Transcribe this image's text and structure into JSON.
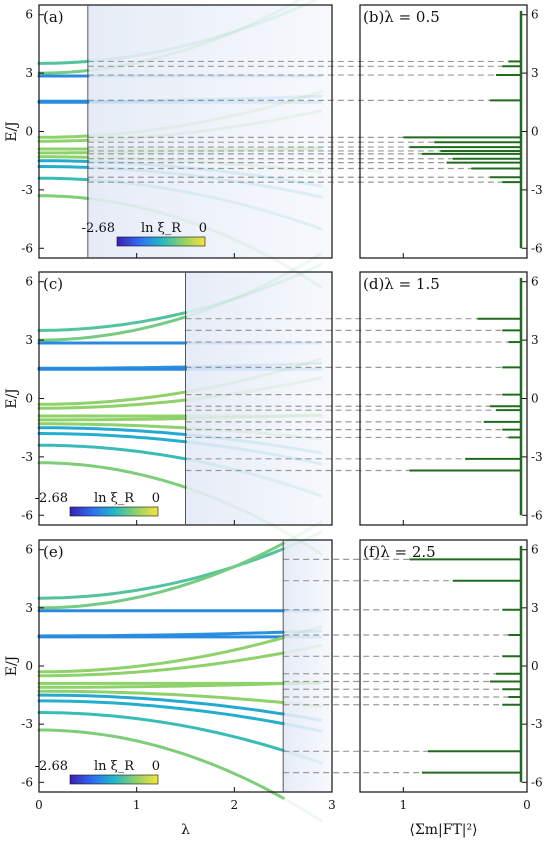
{
  "chart_data": {
    "type": "line",
    "panels": [
      {
        "label": "(a)",
        "kind": "spectrum",
        "lambda": 0.5
      },
      {
        "label": "(b)",
        "kind": "fourier",
        "lambda_text": "λ = 0.5",
        "lambda": 0.5
      },
      {
        "label": "(c)",
        "kind": "spectrum",
        "lambda": 1.5
      },
      {
        "label": "(d)",
        "kind": "fourier",
        "lambda_text": "λ = 1.5",
        "lambda": 1.5
      },
      {
        "label": "(e)",
        "kind": "spectrum",
        "lambda": 2.5
      },
      {
        "label": "(f)",
        "kind": "fourier",
        "lambda_text": "λ = 2.5",
        "lambda": 2.5
      }
    ],
    "ylabel": "E/J",
    "xlabel": "λ",
    "xlabel_right": "⟨Σm|FT|²⟩",
    "xlim": [
      0,
      3
    ],
    "ylim": [
      -6.5,
      6.5
    ],
    "xticks": [
      0,
      1,
      2,
      3
    ],
    "yticks": [
      -6,
      -3,
      0,
      3,
      6
    ],
    "right_xticks": [
      1,
      0
    ],
    "right_xlim": [
      1.35,
      0
    ],
    "colorbar": {
      "min_label": "-2.68",
      "max_label": "0",
      "label": "ln ξ_R",
      "min": -2.68,
      "max": 0
    },
    "levels": [
      {
        "E0": 3.5,
        "slope": 0.65,
        "a": 0.0
      },
      {
        "E0": 3.0,
        "slope": 0.85,
        "a": 0.0
      },
      {
        "E0": 2.85,
        "slope": 0.0,
        "a": 0.0
      },
      {
        "E0": 1.55,
        "slope": 0.05,
        "a": 0.0
      },
      {
        "E0": 1.5,
        "slope": 0.0,
        "a": 0.0
      },
      {
        "E0": -0.3,
        "slope": 0.45,
        "a": 0.0
      },
      {
        "E0": -0.5,
        "slope": 0.3,
        "a": 0.0
      },
      {
        "E0": -0.9,
        "slope": 0.0,
        "a": 0.0
      },
      {
        "E0": -1.1,
        "slope": 0.05,
        "a": 0.0
      },
      {
        "E0": -1.3,
        "slope": -0.15,
        "a": 0.0
      },
      {
        "E0": -1.5,
        "slope": -0.25,
        "a": 0.0
      },
      {
        "E0": -1.8,
        "slope": -0.3,
        "a": 0.0
      },
      {
        "E0": -2.4,
        "slope": -0.5,
        "a": 0.0
      },
      {
        "E0": -3.3,
        "slope": -0.9,
        "a": 0.0
      }
    ],
    "fourier_spikes": [
      {
        "lambda": 0.5,
        "E": [
          3.6,
          3.35,
          2.9,
          1.6,
          -0.3,
          -0.55,
          -0.8,
          -1.0,
          -1.15,
          -1.4,
          -1.6,
          -1.9,
          -2.35,
          -2.6
        ],
        "amp": [
          0.15,
          0.2,
          0.25,
          0.3,
          1.0,
          0.75,
          0.95,
          0.7,
          0.85,
          0.6,
          0.65,
          0.45,
          0.3,
          0.2
        ]
      },
      {
        "lambda": 1.5,
        "E": [
          4.1,
          3.5,
          2.9,
          1.6,
          0.2,
          -0.4,
          -0.6,
          -1.2,
          -1.6,
          -2.0,
          -3.1,
          -3.7
        ],
        "amp": [
          0.4,
          0.2,
          0.15,
          0.2,
          0.2,
          0.3,
          0.25,
          0.35,
          0.2,
          0.15,
          0.5,
          0.95
        ]
      },
      {
        "lambda": 2.5,
        "E": [
          5.5,
          4.4,
          2.9,
          1.6,
          0.5,
          -0.4,
          -0.8,
          -1.2,
          -1.6,
          -2.0,
          -4.4,
          -5.5
        ],
        "amp": [
          0.95,
          0.6,
          0.2,
          0.15,
          0.2,
          0.25,
          0.3,
          0.2,
          0.15,
          0.2,
          0.8,
          0.85
        ]
      }
    ]
  }
}
